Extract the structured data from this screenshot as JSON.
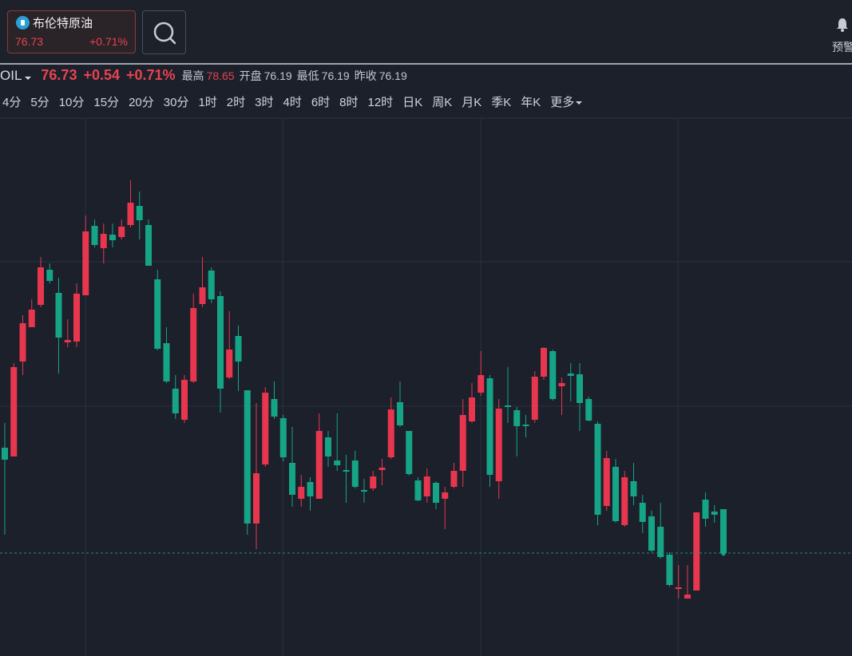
{
  "tab": {
    "name": "布伦特原油",
    "price": "76.73",
    "change": "+0.71%"
  },
  "alert": "预警",
  "quote": {
    "symbol": "OIL",
    "price": "76.73",
    "change": "+0.54",
    "change_pct": "+0.71%",
    "high_label": "最高",
    "high": "78.65",
    "open_label": "开盘",
    "open": "76.19",
    "low_label": "最低",
    "low": "76.19",
    "prev_label": "昨收",
    "prev": "76.19"
  },
  "periods": [
    "4分",
    "5分",
    "10分",
    "15分",
    "20分",
    "30分",
    "1时",
    "2时",
    "3时",
    "4时",
    "6时",
    "8时",
    "12时",
    "日K",
    "周K",
    "月K",
    "季K",
    "年K",
    "更多"
  ],
  "chart_data": {
    "type": "candlestick",
    "ylim": [
      76.085,
      79.455
    ],
    "up_color": "#e8364f",
    "down_color": "#16a487",
    "last": 76.73,
    "candles": [
      [
        77.39,
        77.545,
        76.845,
        77.315
      ],
      [
        77.335,
        77.92,
        77.335,
        77.895
      ],
      [
        77.93,
        78.22,
        77.845,
        78.17
      ],
      [
        78.145,
        78.32,
        78.145,
        78.255
      ],
      [
        78.285,
        78.585,
        78.27,
        78.52
      ],
      [
        78.505,
        78.545,
        78.42,
        78.435
      ],
      [
        78.36,
        78.455,
        77.855,
        78.08
      ],
      [
        78.05,
        78.195,
        78.02,
        78.065
      ],
      [
        78.055,
        78.42,
        78.02,
        78.355
      ],
      [
        78.345,
        78.845,
        78.345,
        78.745
      ],
      [
        78.78,
        78.82,
        78.645,
        78.66
      ],
      [
        78.64,
        78.795,
        78.545,
        78.73
      ],
      [
        78.725,
        78.795,
        78.645,
        78.69
      ],
      [
        78.71,
        78.82,
        78.695,
        78.775
      ],
      [
        78.785,
        79.065,
        78.77,
        78.925
      ],
      [
        78.905,
        78.995,
        78.695,
        78.815
      ],
      [
        78.785,
        78.82,
        78.53,
        78.53
      ],
      [
        78.445,
        78.505,
        78.0,
        78.01
      ],
      [
        78.045,
        78.145,
        77.795,
        77.805
      ],
      [
        77.76,
        77.845,
        77.57,
        77.605
      ],
      [
        77.565,
        77.845,
        77.545,
        77.815
      ],
      [
        77.805,
        78.355,
        77.795,
        78.265
      ],
      [
        78.29,
        78.585,
        78.27,
        78.395
      ],
      [
        78.5,
        78.52,
        78.295,
        78.32
      ],
      [
        78.34,
        78.37,
        77.61,
        77.76
      ],
      [
        77.83,
        78.245,
        77.82,
        78.005
      ],
      [
        78.09,
        78.155,
        77.745,
        77.93
      ],
      [
        77.75,
        77.75,
        76.845,
        76.915
      ],
      [
        76.915,
        77.67,
        76.755,
        77.23
      ],
      [
        77.285,
        77.77,
        77.27,
        77.735
      ],
      [
        77.695,
        77.805,
        77.57,
        77.585
      ],
      [
        77.575,
        77.595,
        77.305,
        77.33
      ],
      [
        77.295,
        77.52,
        77.02,
        77.095
      ],
      [
        77.07,
        77.22,
        77.02,
        77.145
      ],
      [
        77.175,
        77.205,
        76.995,
        77.085
      ],
      [
        77.07,
        77.605,
        77.07,
        77.495
      ],
      [
        77.455,
        77.495,
        77.27,
        77.335
      ],
      [
        77.31,
        77.605,
        77.245,
        77.28
      ],
      [
        77.25,
        77.345,
        77.045,
        77.24
      ],
      [
        77.31,
        77.37,
        77.135,
        77.145
      ],
      [
        77.125,
        77.195,
        77.045,
        77.115
      ],
      [
        77.135,
        77.245,
        77.12,
        77.21
      ],
      [
        77.25,
        77.32,
        77.155,
        77.265
      ],
      [
        77.33,
        77.705,
        77.32,
        77.63
      ],
      [
        77.675,
        77.805,
        77.52,
        77.53
      ],
      [
        77.495,
        77.495,
        77.215,
        77.225
      ],
      [
        77.185,
        77.205,
        77.055,
        77.06
      ],
      [
        77.085,
        77.26,
        77.045,
        77.21
      ],
      [
        77.17,
        77.18,
        77.005,
        77.045
      ],
      [
        77.07,
        77.145,
        76.88,
        77.11
      ],
      [
        77.145,
        77.295,
        77.135,
        77.245
      ],
      [
        77.245,
        77.695,
        77.145,
        77.595
      ],
      [
        77.555,
        77.795,
        77.545,
        77.705
      ],
      [
        77.735,
        77.995,
        77.715,
        77.845
      ],
      [
        77.825,
        77.845,
        77.145,
        77.22
      ],
      [
        77.18,
        77.695,
        77.07,
        77.635
      ],
      [
        77.655,
        77.895,
        77.545,
        77.645
      ],
      [
        77.625,
        77.645,
        77.335,
        77.525
      ],
      [
        77.535,
        77.595,
        77.455,
        77.525
      ],
      [
        77.565,
        77.87,
        77.545,
        77.835
      ],
      [
        77.835,
        78.02,
        77.815,
        78.015
      ],
      [
        77.995,
        78.005,
        77.685,
        77.695
      ],
      [
        77.775,
        77.83,
        77.595,
        77.795
      ],
      [
        77.855,
        77.92,
        77.68,
        77.84
      ],
      [
        77.85,
        77.92,
        77.495,
        77.67
      ],
      [
        77.695,
        77.71,
        77.555,
        77.56
      ],
      [
        77.54,
        77.555,
        76.905,
        76.97
      ],
      [
        77.025,
        77.37,
        76.995,
        77.325
      ],
      [
        77.27,
        77.32,
        76.92,
        76.93
      ],
      [
        76.905,
        77.245,
        76.895,
        77.205
      ],
      [
        77.18,
        77.295,
        77.03,
        77.085
      ],
      [
        77.045,
        77.095,
        76.855,
        76.925
      ],
      [
        76.96,
        76.995,
        76.735,
        76.745
      ],
      [
        76.895,
        77.045,
        76.695,
        76.705
      ],
      [
        76.72,
        76.735,
        76.52,
        76.53
      ],
      [
        76.505,
        76.655,
        76.445,
        76.515
      ],
      [
        76.445,
        76.655,
        76.445,
        76.47
      ],
      [
        76.495,
        76.985,
        76.495,
        76.985
      ],
      [
        77.065,
        77.11,
        76.895,
        76.945
      ],
      [
        76.99,
        77.03,
        76.92,
        76.97
      ],
      [
        77.005,
        77.005,
        76.71,
        76.73
      ]
    ]
  }
}
